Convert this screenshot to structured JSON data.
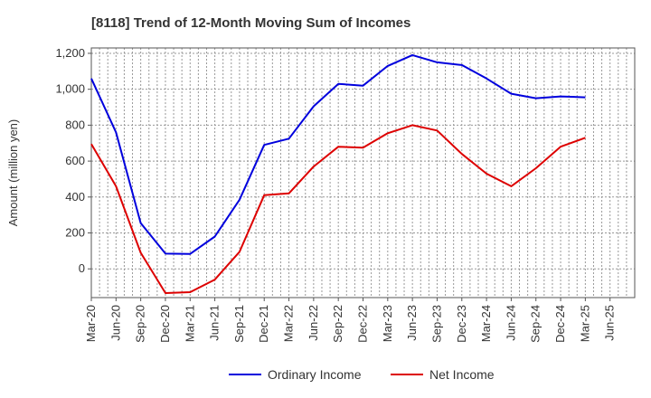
{
  "chart_data": {
    "type": "line",
    "title": "[8118]  Trend of 12-Month Moving Sum of Incomes",
    "xlabel": "",
    "ylabel": "Amount (million yen)",
    "ylim": [
      -160,
      1230
    ],
    "yticks": [
      0,
      200,
      400,
      600,
      800,
      "1,000",
      "1,200"
    ],
    "ytick_values": [
      0,
      200,
      400,
      600,
      800,
      1000,
      1200
    ],
    "grid": true,
    "legend_position": "bottom-center",
    "categories": [
      "Mar-20",
      "Jun-20",
      "Sep-20",
      "Dec-20",
      "Mar-21",
      "Jun-21",
      "Sep-21",
      "Dec-21",
      "Mar-22",
      "Jun-22",
      "Sep-22",
      "Dec-22",
      "Mar-23",
      "Jun-23",
      "Sep-23",
      "Dec-23",
      "Mar-24",
      "Jun-24",
      "Sep-24",
      "Dec-24",
      "Mar-25",
      "Jun-25"
    ],
    "series": [
      {
        "name": "Ordinary Income",
        "color": "#0000dd",
        "values": [
          1060,
          760,
          255,
          85,
          83,
          180,
          385,
          690,
          725,
          905,
          1030,
          1020,
          1130,
          1190,
          1150,
          1135,
          1060,
          975,
          950,
          960,
          955,
          null
        ]
      },
      {
        "name": "Net Income",
        "color": "#dd0000",
        "values": [
          695,
          460,
          90,
          -135,
          -130,
          -60,
          95,
          410,
          420,
          570,
          680,
          675,
          755,
          800,
          770,
          640,
          530,
          460,
          560,
          680,
          730,
          null
        ]
      }
    ]
  }
}
